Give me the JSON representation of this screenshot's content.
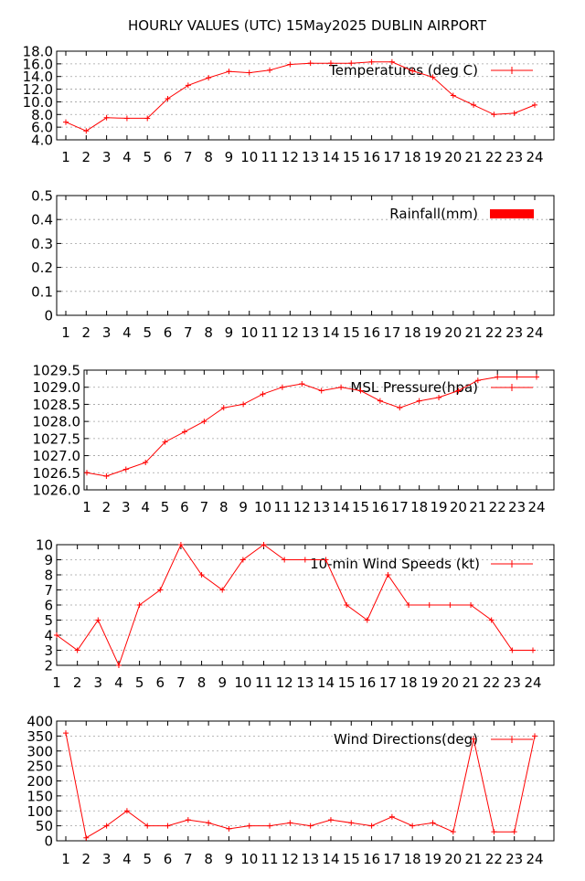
{
  "page": {
    "title": "HOURLY VALUES (UTC) 15May2025  DUBLIN AIRPORT",
    "accent_color": "#ff0000"
  },
  "chart_data": [
    {
      "type": "line",
      "series": [
        {
          "name": "Temperatures (deg C)",
          "values": [
            6.8,
            5.4,
            7.5,
            7.4,
            7.4,
            10.5,
            12.6,
            13.8,
            14.8,
            14.6,
            15.0,
            15.9,
            16.1,
            16.1,
            16.1,
            16.3,
            16.3,
            14.9,
            13.9,
            11.0,
            9.5,
            8.0,
            8.2,
            9.5
          ]
        }
      ],
      "x": [
        1,
        2,
        3,
        4,
        5,
        6,
        7,
        8,
        9,
        10,
        11,
        12,
        13,
        14,
        15,
        16,
        17,
        18,
        19,
        20,
        21,
        22,
        23,
        24
      ],
      "ylim": [
        4.0,
        18.0
      ],
      "yticks": [
        "4.0",
        "6.0",
        "8.0",
        "10.0",
        "12.0",
        "14.0",
        "16.0",
        "18.0"
      ],
      "grid": true,
      "legend": "top-right"
    },
    {
      "type": "bar",
      "series": [
        {
          "name": "Rainfall(mm)",
          "values": [
            0,
            0,
            0,
            0,
            0,
            0,
            0,
            0,
            0,
            0,
            0,
            0,
            0,
            0,
            0,
            0,
            0,
            0,
            0,
            0,
            0,
            0,
            0,
            0
          ]
        }
      ],
      "x": [
        1,
        2,
        3,
        4,
        5,
        6,
        7,
        8,
        9,
        10,
        11,
        12,
        13,
        14,
        15,
        16,
        17,
        18,
        19,
        20,
        21,
        22,
        23,
        24
      ],
      "ylim": [
        0,
        0.5
      ],
      "yticks": [
        "0",
        "0.1",
        "0.2",
        "0.3",
        "0.4",
        "0.5"
      ],
      "grid": true,
      "legend": "top-right"
    },
    {
      "type": "line",
      "series": [
        {
          "name": "MSL Pressure(hpa)",
          "values": [
            1026.5,
            1026.4,
            1026.6,
            1026.8,
            1027.4,
            1027.7,
            1028.0,
            1028.4,
            1028.5,
            1028.8,
            1029.0,
            1029.1,
            1028.9,
            1029.0,
            1028.9,
            1028.6,
            1028.4,
            1028.6,
            1028.7,
            1028.9,
            1029.2,
            1029.3,
            1029.3,
            1029.3
          ]
        }
      ],
      "x": [
        1,
        2,
        3,
        4,
        5,
        6,
        7,
        8,
        9,
        10,
        11,
        12,
        13,
        14,
        15,
        16,
        17,
        18,
        19,
        20,
        21,
        22,
        23,
        24
      ],
      "ylim": [
        1026.0,
        1029.5
      ],
      "yticks": [
        "1026.0",
        "1026.5",
        "1027.0",
        "1027.5",
        "1028.0",
        "1028.5",
        "1029.0",
        "1029.5"
      ],
      "grid": true,
      "legend": "top-right"
    },
    {
      "type": "line",
      "series": [
        {
          "name": "10-min Wind Speeds (kt)",
          "values": [
            4,
            3,
            5,
            2,
            6,
            7,
            10,
            8,
            7,
            9,
            10,
            9,
            9,
            9,
            6,
            5,
            8,
            6,
            6,
            6,
            6,
            5,
            3,
            3
          ]
        }
      ],
      "x": [
        1,
        2,
        3,
        4,
        5,
        6,
        7,
        8,
        9,
        10,
        11,
        12,
        13,
        14,
        15,
        16,
        17,
        18,
        19,
        20,
        21,
        22,
        23,
        24
      ],
      "ylim": [
        2,
        10
      ],
      "yticks": [
        "2",
        "3",
        "4",
        "5",
        "6",
        "7",
        "8",
        "9",
        "10"
      ],
      "grid": true,
      "legend": "top-right"
    },
    {
      "type": "line",
      "series": [
        {
          "name": "Wind Directions(deg)",
          "values": [
            360,
            10,
            50,
            100,
            50,
            50,
            70,
            60,
            40,
            50,
            50,
            60,
            50,
            70,
            60,
            50,
            80,
            50,
            60,
            30,
            340,
            30,
            30,
            350
          ]
        }
      ],
      "x": [
        1,
        2,
        3,
        4,
        5,
        6,
        7,
        8,
        9,
        10,
        11,
        12,
        13,
        14,
        15,
        16,
        17,
        18,
        19,
        20,
        21,
        22,
        23,
        24
      ],
      "ylim": [
        0,
        400
      ],
      "yticks": [
        "0",
        "50",
        "100",
        "150",
        "200",
        "250",
        "300",
        "350",
        "400"
      ],
      "grid": true,
      "legend": "top-right"
    }
  ]
}
